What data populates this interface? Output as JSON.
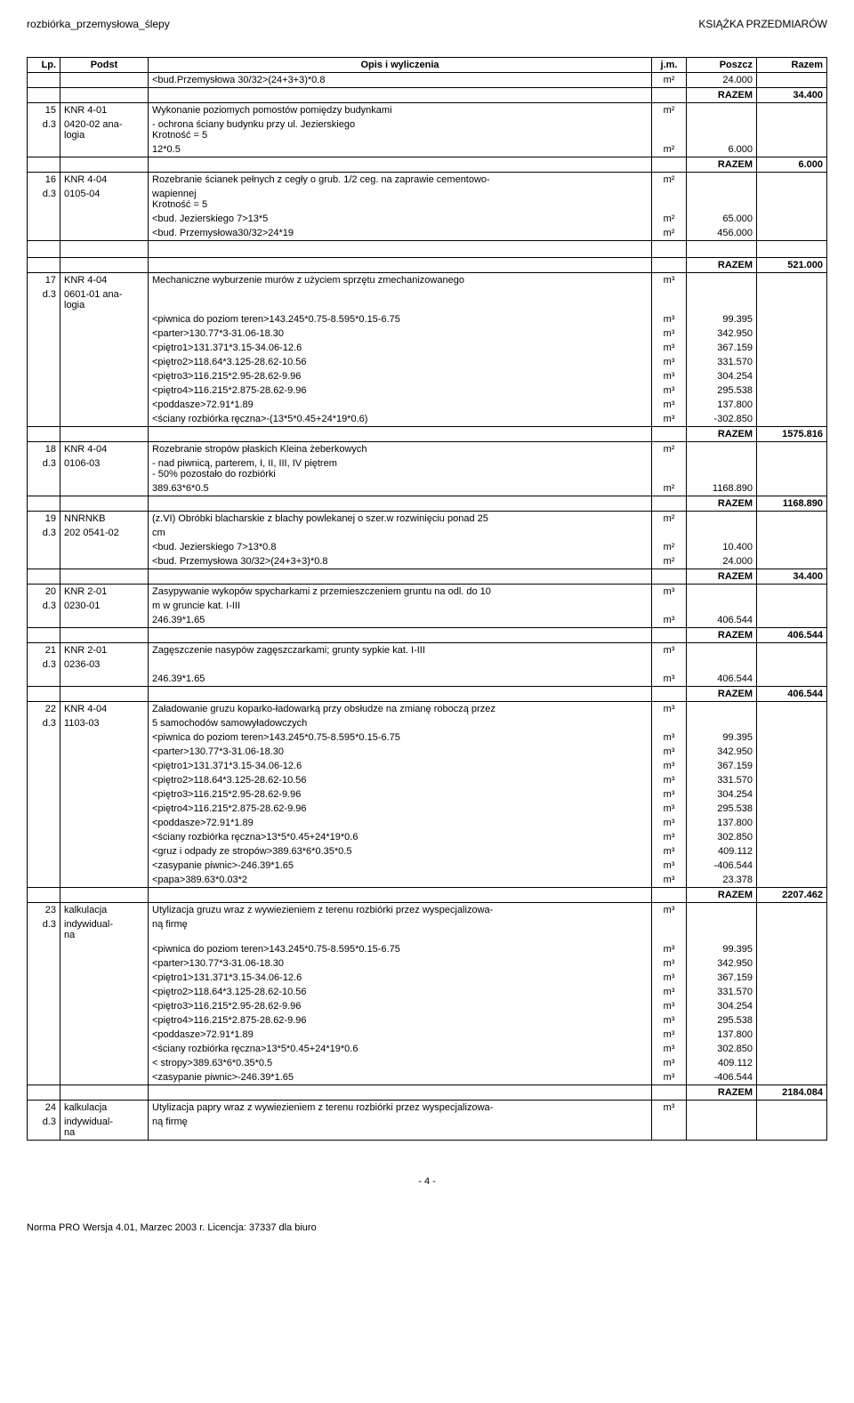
{
  "header": {
    "left": "rozbiórka_przemysłowa_ślepy",
    "right": "KSIĄŻKA PRZEDMIARÓW"
  },
  "columns": [
    "Lp.",
    "Podst",
    "Opis i wyliczenia",
    "j.m.",
    "Poszcz",
    "Razem"
  ],
  "rows": [
    {
      "lp": "",
      "podst": "",
      "opis": "<bud.Przemysłowa 30/32>(24+3+3)*0.8",
      "jm": "m²",
      "poszcz": "24.000",
      "razem": ""
    },
    {
      "lp": "",
      "podst": "",
      "opis": "",
      "jm": "",
      "poszcz": "RAZEM",
      "razem": "34.400",
      "bold": true
    },
    {
      "lp": "15",
      "podst": "KNR 4-01",
      "opis": "Wykonanie poziomych pomostów pomiędzy budynkami",
      "jm": "m²",
      "poszcz": "",
      "razem": "",
      "cont": "open"
    },
    {
      "lp": "d.3",
      "podst": "0420-02 ana-\nlogia",
      "opis": "- ochrona ściany budynku przy ul. Jezierskiego\nKrotność = 5",
      "jm": "",
      "poszcz": "",
      "razem": "",
      "cont": "mid"
    },
    {
      "lp": "",
      "podst": "",
      "opis": "12*0.5",
      "jm": "m²",
      "poszcz": "6.000",
      "razem": "",
      "cont": "close"
    },
    {
      "lp": "",
      "podst": "",
      "opis": "",
      "jm": "",
      "poszcz": "RAZEM",
      "razem": "6.000",
      "bold": true
    },
    {
      "lp": "16",
      "podst": "KNR 4-04",
      "opis": "Rozebranie ścianek pełnych z cegły o grub. 1/2 ceg. na zaprawie cementowo-",
      "jm": "m²",
      "poszcz": "",
      "razem": "",
      "cont": "open"
    },
    {
      "lp": "d.3",
      "podst": "0105-04",
      "opis": "wapiennej\nKrotność = 5",
      "jm": "",
      "poszcz": "",
      "razem": "",
      "cont": "mid"
    },
    {
      "lp": "",
      "podst": "",
      "opis": "<bud. Jezierskiego 7>13*5",
      "jm": "m²",
      "poszcz": "65.000",
      "razem": "",
      "cont": "mid"
    },
    {
      "lp": "",
      "podst": "",
      "opis": "<bud. Przemysłowa30/32>24*19",
      "jm": "m²",
      "poszcz": "456.000",
      "razem": "",
      "cont": "close"
    },
    {
      "lp": "",
      "podst": "",
      "opis": "",
      "jm": "",
      "poszcz": "",
      "razem": "",
      "spacer": true
    },
    {
      "lp": "",
      "podst": "",
      "opis": "",
      "jm": "",
      "poszcz": "RAZEM",
      "razem": "521.000",
      "bold": true
    },
    {
      "lp": "17",
      "podst": "KNR 4-04",
      "opis": "Mechaniczne wyburzenie murów z użyciem sprzętu zmechanizowanego",
      "jm": "m³",
      "poszcz": "",
      "razem": "",
      "cont": "open"
    },
    {
      "lp": "d.3",
      "podst": "0601-01 ana-\nlogia",
      "opis": "",
      "jm": "",
      "poszcz": "",
      "razem": "",
      "cont": "mid"
    },
    {
      "lp": "",
      "podst": "",
      "opis": "<piwnica do poziom teren>143.245*0.75-8.595*0.15-6.75",
      "jm": "m³",
      "poszcz": "99.395",
      "razem": "",
      "cont": "mid"
    },
    {
      "lp": "",
      "podst": "",
      "opis": "<parter>130.77*3-31.06-18.30",
      "jm": "m³",
      "poszcz": "342.950",
      "razem": "",
      "cont": "mid"
    },
    {
      "lp": "",
      "podst": "",
      "opis": "<piętro1>131.371*3.15-34.06-12.6",
      "jm": "m³",
      "poszcz": "367.159",
      "razem": "",
      "cont": "mid"
    },
    {
      "lp": "",
      "podst": "",
      "opis": "<piętro2>118.64*3.125-28.62-10.56",
      "jm": "m³",
      "poszcz": "331.570",
      "razem": "",
      "cont": "mid"
    },
    {
      "lp": "",
      "podst": "",
      "opis": "<piętro3>116.215*2.95-28.62-9.96",
      "jm": "m³",
      "poszcz": "304.254",
      "razem": "",
      "cont": "mid"
    },
    {
      "lp": "",
      "podst": "",
      "opis": "<piętro4>116.215*2.875-28.62-9.96",
      "jm": "m³",
      "poszcz": "295.538",
      "razem": "",
      "cont": "mid"
    },
    {
      "lp": "",
      "podst": "",
      "opis": "<poddasze>72.91*1.89",
      "jm": "m³",
      "poszcz": "137.800",
      "razem": "",
      "cont": "mid"
    },
    {
      "lp": "",
      "podst": "",
      "opis": "<ściany rozbiórka ręczna>-(13*5*0.45+24*19*0.6)",
      "jm": "m³",
      "poszcz": "-302.850",
      "razem": "",
      "cont": "close"
    },
    {
      "lp": "",
      "podst": "",
      "opis": "",
      "jm": "",
      "poszcz": "RAZEM",
      "razem": "1575.816",
      "bold": true
    },
    {
      "lp": "18",
      "podst": "KNR 4-04",
      "opis": "Rozebranie stropów płaskich Kleina żeberkowych",
      "jm": "m²",
      "poszcz": "",
      "razem": "",
      "cont": "open"
    },
    {
      "lp": "d.3",
      "podst": "0106-03",
      "opis": "- nad piwnicą, parterem, I, II, III, IV piętrem\n- 50% pozostało do rozbiórki",
      "jm": "",
      "poszcz": "",
      "razem": "",
      "cont": "mid"
    },
    {
      "lp": "",
      "podst": "",
      "opis": "389.63*6*0.5",
      "jm": "m²",
      "poszcz": "1168.890",
      "razem": "",
      "cont": "close"
    },
    {
      "lp": "",
      "podst": "",
      "opis": "",
      "jm": "",
      "poszcz": "RAZEM",
      "razem": "1168.890",
      "bold": true
    },
    {
      "lp": "19",
      "podst": "NNRNKB",
      "opis": "(z.VI) Obróbki blacharskie z blachy powlekanej o szer.w rozwinięciu ponad 25",
      "jm": "m²",
      "poszcz": "",
      "razem": "",
      "cont": "open"
    },
    {
      "lp": "d.3",
      "podst": "202 0541-02",
      "opis": "cm",
      "jm": "",
      "poszcz": "",
      "razem": "",
      "cont": "mid"
    },
    {
      "lp": "",
      "podst": "",
      "opis": "<bud. Jezierskiego 7>13*0.8",
      "jm": "m²",
      "poszcz": "10.400",
      "razem": "",
      "cont": "mid"
    },
    {
      "lp": "",
      "podst": "",
      "opis": "<bud. Przemysłowa 30/32>(24+3+3)*0.8",
      "jm": "m²",
      "poszcz": "24.000",
      "razem": "",
      "cont": "close"
    },
    {
      "lp": "",
      "podst": "",
      "opis": "",
      "jm": "",
      "poszcz": "RAZEM",
      "razem": "34.400",
      "bold": true
    },
    {
      "lp": "20",
      "podst": "KNR 2-01",
      "opis": "Zasypywanie wykopów spycharkami z przemieszczeniem gruntu na odl. do 10",
      "jm": "m³",
      "poszcz": "",
      "razem": "",
      "cont": "open"
    },
    {
      "lp": "d.3",
      "podst": "0230-01",
      "opis": "m w gruncie kat. I-III",
      "jm": "",
      "poszcz": "",
      "razem": "",
      "cont": "mid"
    },
    {
      "lp": "",
      "podst": "",
      "opis": "246.39*1.65",
      "jm": "m³",
      "poszcz": "406.544",
      "razem": "",
      "cont": "close"
    },
    {
      "lp": "",
      "podst": "",
      "opis": "",
      "jm": "",
      "poszcz": "RAZEM",
      "razem": "406.544",
      "bold": true
    },
    {
      "lp": "21",
      "podst": "KNR 2-01",
      "opis": "Zagęszczenie nasypów zagęszczarkami; grunty sypkie kat. I-III",
      "jm": "m³",
      "poszcz": "",
      "razem": "",
      "cont": "open"
    },
    {
      "lp": "d.3",
      "podst": "0236-03",
      "opis": "",
      "jm": "",
      "poszcz": "",
      "razem": "",
      "cont": "mid"
    },
    {
      "lp": "",
      "podst": "",
      "opis": "246.39*1.65",
      "jm": "m³",
      "poszcz": "406.544",
      "razem": "",
      "cont": "close"
    },
    {
      "lp": "",
      "podst": "",
      "opis": "",
      "jm": "",
      "poszcz": "RAZEM",
      "razem": "406.544",
      "bold": true
    },
    {
      "lp": "22",
      "podst": "KNR 4-04",
      "opis": "Załadowanie gruzu koparko-ładowarką przy obsłudze na zmianę roboczą przez",
      "jm": "m³",
      "poszcz": "",
      "razem": "",
      "cont": "open"
    },
    {
      "lp": "d.3",
      "podst": "1103-03",
      "opis": "5 samochodów samowyładowczych",
      "jm": "",
      "poszcz": "",
      "razem": "",
      "cont": "mid"
    },
    {
      "lp": "",
      "podst": "",
      "opis": "<piwnica do poziom teren>143.245*0.75-8.595*0.15-6.75",
      "jm": "m³",
      "poszcz": "99.395",
      "razem": "",
      "cont": "mid"
    },
    {
      "lp": "",
      "podst": "",
      "opis": "<parter>130.77*3-31.06-18.30",
      "jm": "m³",
      "poszcz": "342.950",
      "razem": "",
      "cont": "mid"
    },
    {
      "lp": "",
      "podst": "",
      "opis": "<piętro1>131.371*3.15-34.06-12.6",
      "jm": "m³",
      "poszcz": "367.159",
      "razem": "",
      "cont": "mid"
    },
    {
      "lp": "",
      "podst": "",
      "opis": "<piętro2>118.64*3.125-28.62-10.56",
      "jm": "m³",
      "poszcz": "331.570",
      "razem": "",
      "cont": "mid"
    },
    {
      "lp": "",
      "podst": "",
      "opis": "<piętro3>116.215*2.95-28.62-9.96",
      "jm": "m³",
      "poszcz": "304.254",
      "razem": "",
      "cont": "mid"
    },
    {
      "lp": "",
      "podst": "",
      "opis": "<piętro4>116.215*2.875-28.62-9.96",
      "jm": "m³",
      "poszcz": "295.538",
      "razem": "",
      "cont": "mid"
    },
    {
      "lp": "",
      "podst": "",
      "opis": "<poddasze>72.91*1.89",
      "jm": "m³",
      "poszcz": "137.800",
      "razem": "",
      "cont": "mid"
    },
    {
      "lp": "",
      "podst": "",
      "opis": "<ściany rozbiórka ręczna>13*5*0.45+24*19*0.6",
      "jm": "m³",
      "poszcz": "302.850",
      "razem": "",
      "cont": "mid"
    },
    {
      "lp": "",
      "podst": "",
      "opis": "<gruz i odpady ze stropów>389.63*6*0.35*0.5",
      "jm": "m³",
      "poszcz": "409.112",
      "razem": "",
      "cont": "mid"
    },
    {
      "lp": "",
      "podst": "",
      "opis": "<zasypanie piwnic>-246.39*1.65",
      "jm": "m³",
      "poszcz": "-406.544",
      "razem": "",
      "cont": "mid"
    },
    {
      "lp": "",
      "podst": "",
      "opis": "<papa>389.63*0.03*2",
      "jm": "m³",
      "poszcz": "23.378",
      "razem": "",
      "cont": "close"
    },
    {
      "lp": "",
      "podst": "",
      "opis": "",
      "jm": "",
      "poszcz": "RAZEM",
      "razem": "2207.462",
      "bold": true
    },
    {
      "lp": "23",
      "podst": "kalkulacja",
      "opis": "Utylizacja gruzu wraz z wywiezieniem z terenu rozbiórki przez wyspecjalizowa-",
      "jm": "m³",
      "poszcz": "",
      "razem": "",
      "cont": "open"
    },
    {
      "lp": "d.3",
      "podst": "indywidual-\nna",
      "opis": "ną firmę",
      "jm": "",
      "poszcz": "",
      "razem": "",
      "cont": "mid"
    },
    {
      "lp": "",
      "podst": "",
      "opis": "<piwnica do poziom teren>143.245*0.75-8.595*0.15-6.75",
      "jm": "m³",
      "poszcz": "99.395",
      "razem": "",
      "cont": "mid"
    },
    {
      "lp": "",
      "podst": "",
      "opis": "<parter>130.77*3-31.06-18.30",
      "jm": "m³",
      "poszcz": "342.950",
      "razem": "",
      "cont": "mid"
    },
    {
      "lp": "",
      "podst": "",
      "opis": "<piętro1>131.371*3.15-34.06-12.6",
      "jm": "m³",
      "poszcz": "367.159",
      "razem": "",
      "cont": "mid"
    },
    {
      "lp": "",
      "podst": "",
      "opis": "<piętro2>118.64*3.125-28.62-10.56",
      "jm": "m³",
      "poszcz": "331.570",
      "razem": "",
      "cont": "mid"
    },
    {
      "lp": "",
      "podst": "",
      "opis": "<piętro3>116.215*2.95-28.62-9.96",
      "jm": "m³",
      "poszcz": "304.254",
      "razem": "",
      "cont": "mid"
    },
    {
      "lp": "",
      "podst": "",
      "opis": "<piętro4>116.215*2.875-28.62-9.96",
      "jm": "m³",
      "poszcz": "295.538",
      "razem": "",
      "cont": "mid"
    },
    {
      "lp": "",
      "podst": "",
      "opis": "<poddasze>72.91*1.89",
      "jm": "m³",
      "poszcz": "137.800",
      "razem": "",
      "cont": "mid"
    },
    {
      "lp": "",
      "podst": "",
      "opis": "<ściany rozbiórka ręczna>13*5*0.45+24*19*0.6",
      "jm": "m³",
      "poszcz": "302.850",
      "razem": "",
      "cont": "mid"
    },
    {
      "lp": "",
      "podst": "",
      "opis": "< stropy>389.63*6*0.35*0.5",
      "jm": "m³",
      "poszcz": "409.112",
      "razem": "",
      "cont": "mid"
    },
    {
      "lp": "",
      "podst": "",
      "opis": "<zasypanie piwnic>-246.39*1.65",
      "jm": "m³",
      "poszcz": "-406.544",
      "razem": "",
      "cont": "close"
    },
    {
      "lp": "",
      "podst": "",
      "opis": "",
      "jm": "",
      "poszcz": "RAZEM",
      "razem": "2184.084",
      "bold": true
    },
    {
      "lp": "24",
      "podst": "kalkulacja",
      "opis": "Utylizacja papry wraz z wywiezieniem z terenu rozbiórki przez wyspecjalizowa-",
      "jm": "m³",
      "poszcz": "",
      "razem": "",
      "cont": "open"
    },
    {
      "lp": "d.3",
      "podst": "indywidual-\nna",
      "opis": "ną firmę",
      "jm": "",
      "poszcz": "",
      "razem": "",
      "cont": "close"
    }
  ],
  "footer": "Norma PRO Wersja 4.01, Marzec 2003 r. Licencja: 37337 dla biuro",
  "page_num": "- 4 -"
}
